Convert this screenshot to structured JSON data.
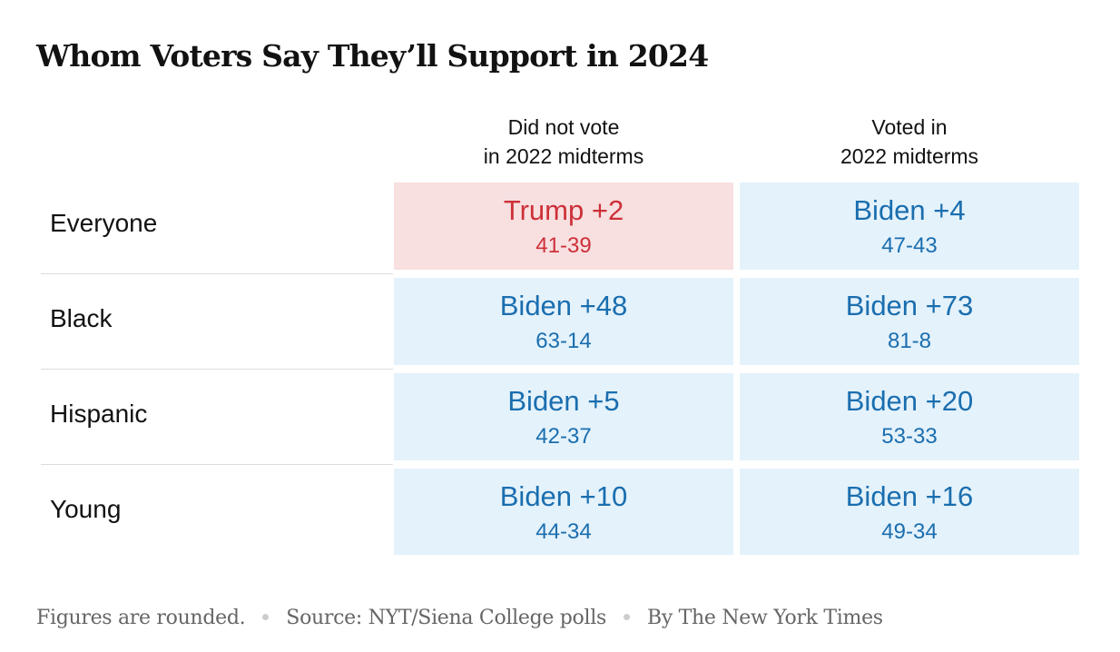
{
  "title": "Whom Voters Say They’ll Support in 2024",
  "colors": {
    "biden_bg": "#e4f2fb",
    "biden_text": "#1a6eaf",
    "trump_bg": "#f8dfe0",
    "trump_text": "#cd3038"
  },
  "chart_data": {
    "type": "table",
    "title": "Whom Voters Say They’ll Support in 2024",
    "columns": [
      {
        "line1": "Did not vote",
        "line2": "in 2022 midterms"
      },
      {
        "line1": "Voted in",
        "line2": "2022 midterms"
      }
    ],
    "rows": [
      {
        "label": "Everyone",
        "cells": [
          {
            "leader": "Trump",
            "margin": "Trump +2",
            "split": "41-39"
          },
          {
            "leader": "Biden",
            "margin": "Biden +4",
            "split": "47-43"
          }
        ]
      },
      {
        "label": "Black",
        "cells": [
          {
            "leader": "Biden",
            "margin": "Biden +48",
            "split": "63-14"
          },
          {
            "leader": "Biden",
            "margin": "Biden +73",
            "split": "81-8"
          }
        ]
      },
      {
        "label": "Hispanic",
        "cells": [
          {
            "leader": "Biden",
            "margin": "Biden +5",
            "split": "42-37"
          },
          {
            "leader": "Biden",
            "margin": "Biden +20",
            "split": "53-33"
          }
        ]
      },
      {
        "label": "Young",
        "cells": [
          {
            "leader": "Biden",
            "margin": "Biden +10",
            "split": "44-34"
          },
          {
            "leader": "Biden",
            "margin": "Biden +16",
            "split": "49-34"
          }
        ]
      }
    ]
  },
  "footer": {
    "note": "Figures are rounded.",
    "source": "Source:  NYT/Siena College polls",
    "byline": "By The New York Times"
  }
}
